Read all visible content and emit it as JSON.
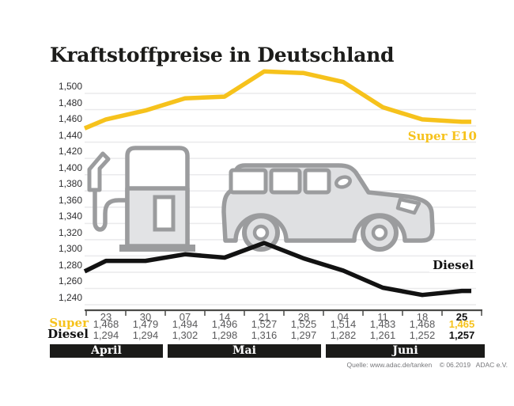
{
  "title": "Kraftstoffpreise in Deutschland",
  "source": "Quelle: www.adac.de/tanken    © 06.2019   ADAC e.V.",
  "colors": {
    "super_yellow": "#F6C21C",
    "diesel_black": "#121212",
    "grid_line": "#EAEAEC",
    "axis_line": "#4B4B48",
    "value_text": "#59595B",
    "ylabel_text": "#2E2E30",
    "band_bg": "#1B1B19",
    "band_text": "#FFFFFF",
    "icon_stroke": "#9B9C9E",
    "icon_fill": "#E2E3E5",
    "source_text": "#77787B"
  },
  "icons": {
    "pump": "fuel-pump-icon",
    "car": "car-icon"
  },
  "chart_data": {
    "type": "line",
    "title": "Kraftstoffpreise in Deutschland",
    "xlabel": "",
    "ylabel": "",
    "grid": true,
    "ylim": [
      1240,
      1500
    ],
    "x_labels": [
      "23",
      "30",
      "07",
      "14",
      "21",
      "28",
      "04",
      "11",
      "18",
      "25"
    ],
    "y_ticks": [
      {
        "v": 1500,
        "label": "1,500"
      },
      {
        "v": 1480,
        "label": "1,480"
      },
      {
        "v": 1460,
        "label": "1,460"
      },
      {
        "v": 1440,
        "label": "1,440"
      },
      {
        "v": 1420,
        "label": "1,420"
      },
      {
        "v": 1400,
        "label": "1,400"
      },
      {
        "v": 1380,
        "label": "1,380"
      },
      {
        "v": 1360,
        "label": "1,360"
      },
      {
        "v": 1340,
        "label": "1,340"
      },
      {
        "v": 1320,
        "label": "1,320"
      },
      {
        "v": 1300,
        "label": "1,300"
      },
      {
        "v": 1280,
        "label": "1,280"
      },
      {
        "v": 1260,
        "label": "1,260"
      },
      {
        "v": 1240,
        "label": "1,240"
      }
    ],
    "series": [
      {
        "name": "Super E10",
        "color": "#F6C21C",
        "edge_start": 1457,
        "values": [
          1468,
          1479,
          1494,
          1496,
          1527,
          1525,
          1514,
          1483,
          1468,
          1465
        ]
      },
      {
        "name": "Diesel",
        "color": "#121212",
        "edge_start": 1281,
        "values": [
          1294,
          1294,
          1302,
          1298,
          1316,
          1297,
          1282,
          1261,
          1252,
          1257
        ]
      }
    ],
    "legend_position": "right-of-line-ends"
  },
  "table": {
    "ticks": [
      "23",
      "30",
      "07",
      "14",
      "21",
      "28",
      "04",
      "11",
      "18",
      "25"
    ],
    "rows": [
      {
        "label": "Super",
        "values": [
          "1,468",
          "1,479",
          "1,494",
          "1,496",
          "1,527",
          "1,525",
          "1,514",
          "1,483",
          "1,468",
          "1,465"
        ]
      },
      {
        "label": "Diesel",
        "values": [
          "1,294",
          "1,294",
          "1,302",
          "1,298",
          "1,316",
          "1,297",
          "1,282",
          "1,261",
          "1,252",
          "1,257"
        ]
      }
    ],
    "months": [
      {
        "label": "April",
        "cols": 2
      },
      {
        "label": "Mai",
        "cols": 4
      },
      {
        "label": "Juni",
        "cols": 4
      }
    ]
  }
}
